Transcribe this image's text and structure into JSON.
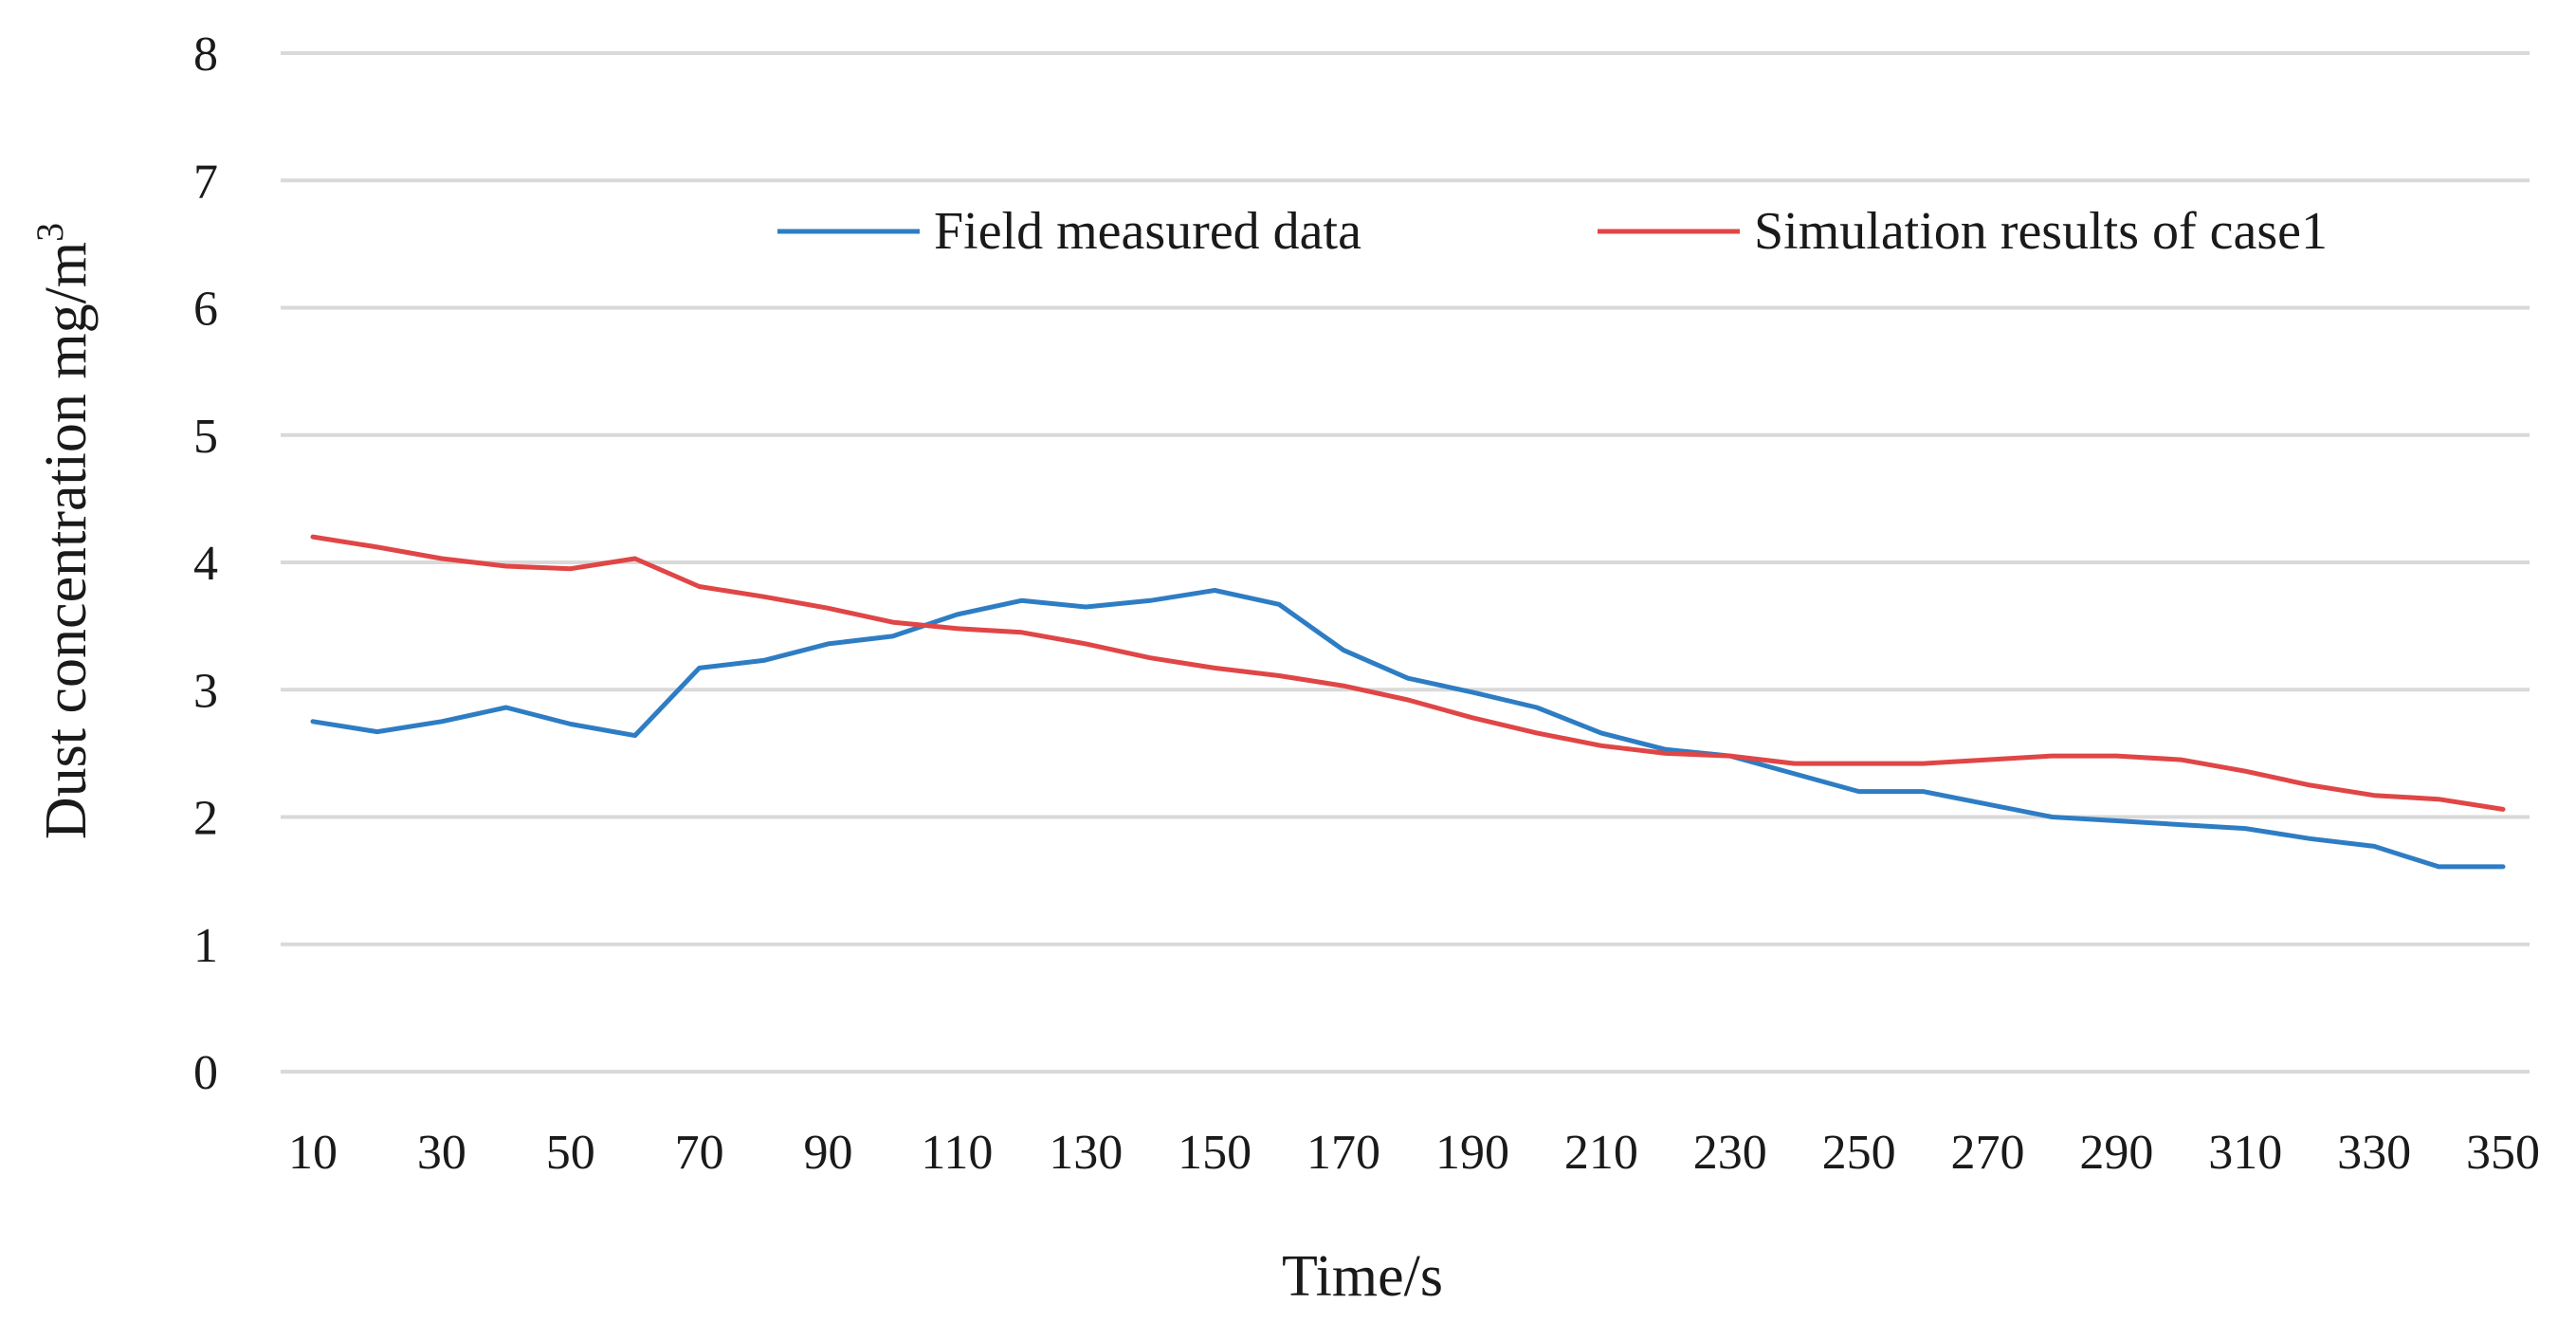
{
  "chart_data": {
    "type": "line",
    "title": "",
    "xlabel": "Time/s",
    "ylabel_main": "Dust concentration mg/m",
    "ylabel_sup": "3",
    "x": [
      10,
      20,
      30,
      40,
      50,
      60,
      70,
      80,
      90,
      100,
      110,
      120,
      130,
      140,
      150,
      160,
      170,
      180,
      190,
      200,
      210,
      220,
      230,
      240,
      250,
      260,
      270,
      280,
      290,
      300,
      310,
      320,
      330,
      340,
      350
    ],
    "x_tick_labels": [
      "10",
      "30",
      "50",
      "70",
      "90",
      "110",
      "130",
      "150",
      "170",
      "190",
      "210",
      "230",
      "250",
      "270",
      "290",
      "310",
      "330",
      "350"
    ],
    "y_tick_labels": [
      "0",
      "1",
      "2",
      "3",
      "4",
      "5",
      "6",
      "7",
      "8"
    ],
    "ylim": [
      0,
      8
    ],
    "grid": true,
    "legend_position": "top-right",
    "series": [
      {
        "name": "Field measured data",
        "color": "#2e7dc4",
        "values": [
          2.75,
          2.67,
          2.75,
          2.86,
          2.73,
          2.64,
          3.17,
          3.23,
          3.36,
          3.42,
          3.59,
          3.7,
          3.65,
          3.7,
          3.78,
          3.67,
          3.31,
          3.09,
          2.98,
          2.86,
          2.66,
          2.53,
          2.48,
          2.34,
          2.2,
          2.2,
          2.1,
          2.0,
          1.97,
          1.94,
          1.91,
          1.83,
          1.77,
          1.61,
          1.61
        ]
      },
      {
        "name": "Simulation results of case1",
        "color": "#e04646",
        "values": [
          4.2,
          4.12,
          4.03,
          3.97,
          3.95,
          4.03,
          3.81,
          3.73,
          3.64,
          3.53,
          3.48,
          3.45,
          3.36,
          3.25,
          3.17,
          3.11,
          3.03,
          2.92,
          2.78,
          2.66,
          2.56,
          2.5,
          2.48,
          2.42,
          2.42,
          2.42,
          2.45,
          2.48,
          2.48,
          2.45,
          2.36,
          2.25,
          2.17,
          2.14,
          2.06
        ]
      }
    ]
  }
}
